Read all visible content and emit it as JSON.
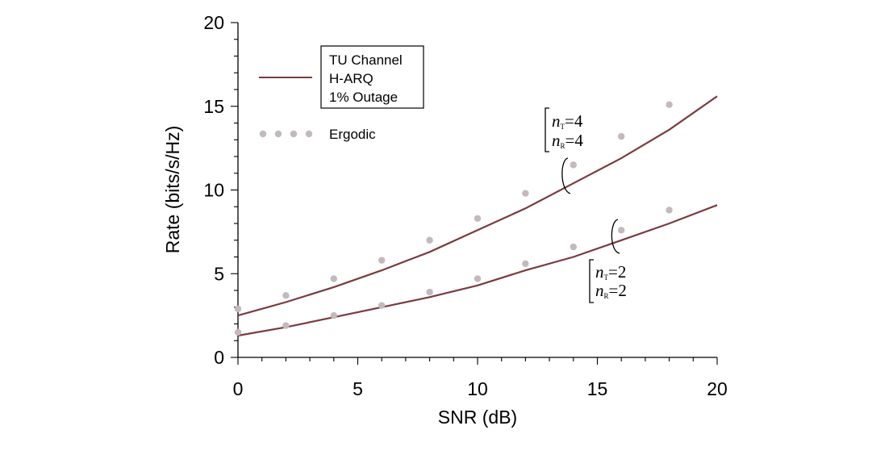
{
  "chart_data": {
    "type": "line",
    "xlabel": "SNR (dB)",
    "ylabel": "Rate (bits/s/Hz)",
    "xlim": [
      0,
      20
    ],
    "ylim": [
      0,
      20
    ],
    "xticks": [
      0,
      5,
      10,
      15,
      20
    ],
    "yticks": [
      0,
      5,
      10,
      15,
      20
    ],
    "xtick_labels": [
      "0",
      "5",
      "10",
      "15",
      "20"
    ],
    "ytick_labels": [
      "0",
      "5",
      "10",
      "15",
      "20"
    ],
    "grid": false,
    "legend": {
      "placement": "top-left",
      "line_entry": [
        "TU Channel",
        "H-ARQ",
        "1% Outage"
      ],
      "marker_entry": "Ergodic"
    },
    "line_color": "#7a3b3e",
    "marker_color": "#c4b9bc",
    "series": [
      {
        "group": "4x4",
        "kind": "line",
        "x": [
          0,
          2,
          4,
          6,
          8,
          10,
          12,
          14,
          16,
          18,
          20
        ],
        "y": [
          2.5,
          3.3,
          4.2,
          5.2,
          6.3,
          7.6,
          8.9,
          10.4,
          11.9,
          13.6,
          15.6
        ]
      },
      {
        "group": "4x4",
        "kind": "markers",
        "x": [
          0,
          2,
          4,
          6,
          8,
          10,
          12,
          14,
          16,
          18
        ],
        "y": [
          2.9,
          3.7,
          4.7,
          5.8,
          7.0,
          8.3,
          9.8,
          11.5,
          13.2,
          15.1
        ]
      },
      {
        "group": "2x2",
        "kind": "line",
        "x": [
          0,
          2,
          4,
          6,
          8,
          10,
          12,
          14,
          16,
          18,
          20
        ],
        "y": [
          1.3,
          1.8,
          2.4,
          3.0,
          3.6,
          4.3,
          5.2,
          6.0,
          7.0,
          8.0,
          9.1
        ]
      },
      {
        "group": "2x2",
        "kind": "markers",
        "x": [
          0,
          2,
          4,
          6,
          8,
          10,
          12,
          14,
          16,
          18
        ],
        "y": [
          1.5,
          1.9,
          2.5,
          3.1,
          3.9,
          4.7,
          5.6,
          6.6,
          7.6,
          8.8
        ]
      }
    ],
    "annotations": [
      {
        "group": "4x4",
        "lines": [
          {
            "base": "n",
            "sub": "T",
            "value": "=4"
          },
          {
            "base": "n",
            "sub": "R",
            "value": "=4"
          }
        ]
      },
      {
        "group": "2x2",
        "lines": [
          {
            "base": "n",
            "sub": "T",
            "value": "=2"
          },
          {
            "base": "n",
            "sub": "R",
            "value": "=2"
          }
        ]
      }
    ]
  }
}
